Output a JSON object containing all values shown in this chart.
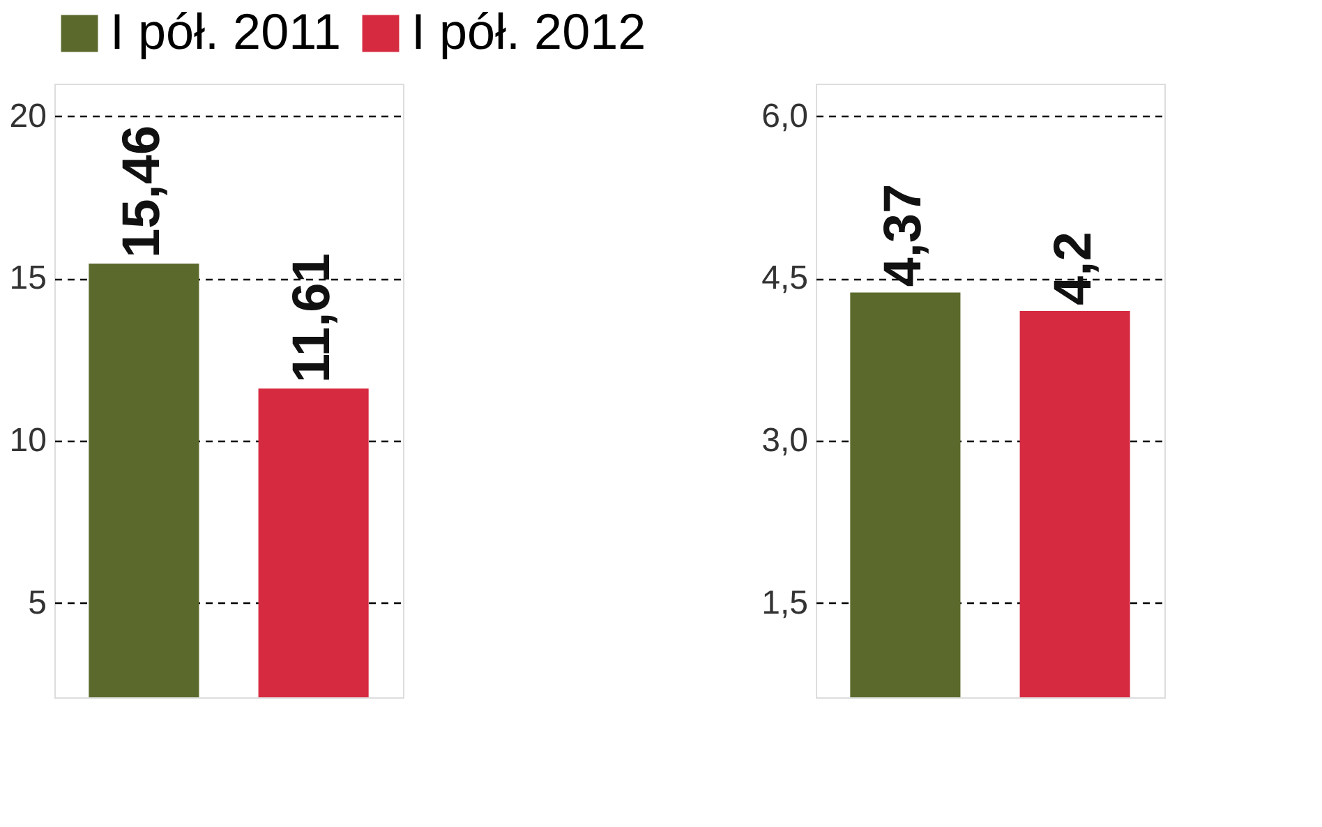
{
  "chart_data": [
    {
      "type": "bar",
      "categories": [
        null
      ],
      "legend": "top",
      "grid": "y",
      "series": [
        {
          "name": "I pół. 2011",
          "color": "#5b6a2c",
          "values": [
            15.46
          ],
          "value_labels": [
            "15,46"
          ]
        },
        {
          "name": "I pół. 2012",
          "color": "#d62a40",
          "values": [
            11.61
          ],
          "value_labels": [
            "11,61"
          ]
        }
      ],
      "ylim": [
        2.1,
        21
      ],
      "yticks": [
        5,
        10,
        15,
        20
      ]
    },
    {
      "type": "bar",
      "categories": [
        null
      ],
      "grid": "y",
      "series": [
        {
          "color": "#5b6a2c",
          "values": [
            4.37
          ],
          "value_labels": [
            "4,37"
          ]
        },
        {
          "color": "#d62a40",
          "values": [
            4.2
          ],
          "value_labels": [
            "4,2"
          ]
        }
      ],
      "ylim": [
        0.63,
        6.3
      ],
      "yticks": [
        {
          "value": 1.5,
          "label": "1,5"
        },
        {
          "value": 3.0,
          "label": "3,0"
        },
        {
          "value": 4.5,
          "label": "4,5"
        },
        {
          "value": 6.0,
          "label": "6,0"
        }
      ]
    }
  ]
}
